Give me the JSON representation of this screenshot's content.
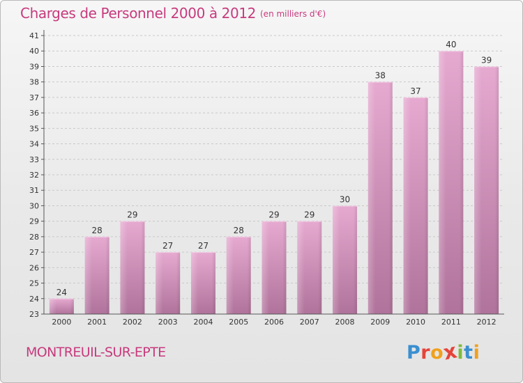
{
  "header": {
    "title": "Charges de Personnel 2000 à 2012",
    "subtitle": "(en milliers d'€)"
  },
  "footer": {
    "commune": "MONTREUIL-SUR-EPTE"
  },
  "logo": {
    "letters": [
      "P",
      "r",
      "o",
      "x",
      "i",
      "t",
      "i"
    ],
    "colors": [
      "#3a8fd0",
      "#e5443a",
      "#f0a11c",
      "#e5443a",
      "#7dbb3c",
      "#3a8fd0",
      "#f0a11c"
    ]
  },
  "colors": {
    "accent": "#c73a7d",
    "bar_top": "#e6a9d0",
    "bar_bottom": "#b0739b",
    "grid": "#c8c8c8",
    "axis": "#555555"
  },
  "chart_data": {
    "type": "bar",
    "categories": [
      "2000",
      "2001",
      "2002",
      "2003",
      "2004",
      "2005",
      "2006",
      "2007",
      "2008",
      "2009",
      "2010",
      "2011",
      "2012"
    ],
    "values": [
      24,
      28,
      29,
      27,
      27,
      28,
      29,
      29,
      30,
      38,
      37,
      40,
      39
    ],
    "ylim": [
      23,
      41
    ],
    "yticks": [
      23,
      24,
      25,
      26,
      27,
      28,
      29,
      30,
      31,
      32,
      33,
      34,
      35,
      36,
      37,
      38,
      39,
      40,
      41
    ],
    "grid": "horizontal dashed",
    "data_labels": true
  }
}
